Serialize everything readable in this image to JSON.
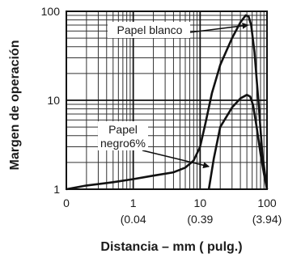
{
  "chart_data": {
    "type": "line",
    "xlabel": "Distancia – mm ( pulg.)",
    "ylabel": "Margen de operación",
    "x_scale": "log",
    "y_scale": "log",
    "xlim": [
      0.1,
      100
    ],
    "ylim": [
      1,
      100
    ],
    "grid": true,
    "x_ticks": [
      {
        "value": 0.1,
        "label": "0",
        "sub": ""
      },
      {
        "value": 1,
        "label": "1",
        "sub": "(0.04"
      },
      {
        "value": 10,
        "label": "10",
        "sub": "(0.39"
      },
      {
        "value": 100,
        "label": "100",
        "sub": "(3.94)"
      }
    ],
    "y_ticks": [
      {
        "value": 1,
        "label": "1"
      },
      {
        "value": 10,
        "label": "10"
      },
      {
        "value": 100,
        "label": "100"
      }
    ],
    "series": [
      {
        "name": "Papel blanco",
        "x": [
          0.1,
          0.2,
          0.5,
          1,
          2,
          4,
          6,
          8,
          10,
          12,
          15,
          20,
          30,
          40,
          48,
          53,
          58,
          65,
          75,
          85,
          100
        ],
        "y": [
          1,
          1.1,
          1.2,
          1.3,
          1.42,
          1.55,
          1.75,
          2.1,
          3,
          5.5,
          12,
          25,
          50,
          75,
          90,
          88,
          70,
          35,
          9,
          2.5,
          1
        ]
      },
      {
        "name": "Papel negro6%",
        "x": [
          13.5,
          16,
          20,
          30,
          40,
          50,
          56,
          62,
          70,
          80,
          90,
          100
        ],
        "y": [
          1,
          2.2,
          5,
          8.3,
          10.5,
          11.5,
          11,
          8.8,
          5,
          2.5,
          1.5,
          1
        ]
      }
    ],
    "annotations": [
      {
        "series": 0,
        "text": "Papel blanco",
        "lines": [
          "Papel blanco"
        ],
        "arrow_to": [
          52,
          70
        ]
      },
      {
        "series": 1,
        "text": "Papel negro6%",
        "lines": [
          "Papel",
          "negro6%"
        ],
        "arrow_to": [
          13.5,
          1.8
        ]
      }
    ]
  }
}
